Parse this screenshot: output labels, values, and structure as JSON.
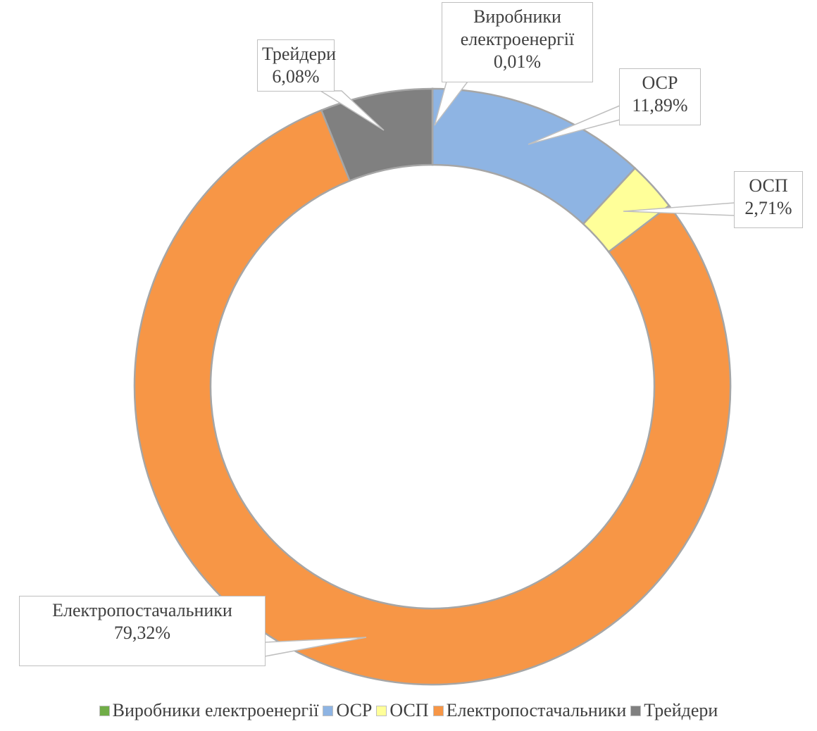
{
  "chart_data": {
    "type": "donut",
    "categories": [
      "Виробники електроенергії",
      "ОСР",
      "ОСП",
      "Електропостачальники",
      "Трейдери"
    ],
    "values": [
      0.01,
      11.89,
      2.71,
      79.32,
      6.08
    ],
    "value_labels": [
      "0,01%",
      "11,89%",
      "2,71%",
      "79,32%",
      "6,08%"
    ],
    "colors": [
      "#70ad47",
      "#8eb4e3",
      "#ffff99",
      "#f79646",
      "#808080"
    ],
    "legend": "bottom"
  }
}
